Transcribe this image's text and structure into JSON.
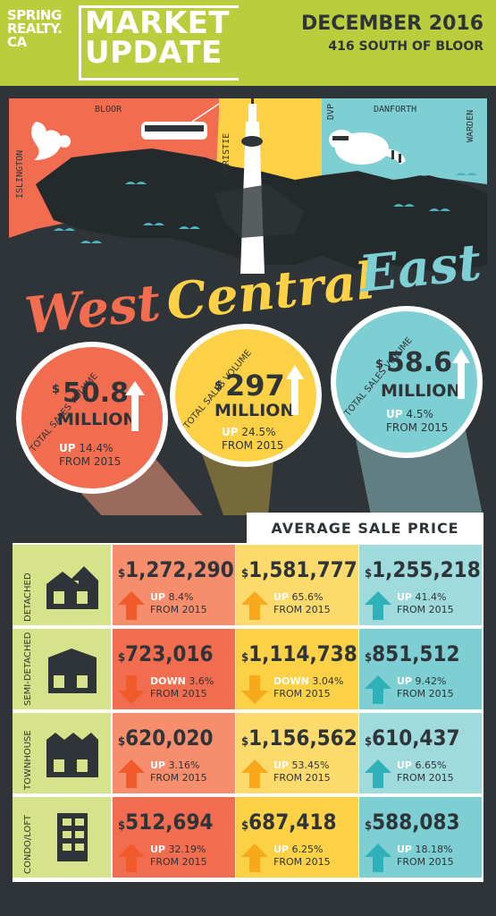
{
  "header": {
    "logo_line1": "SPRING",
    "logo_line2": "REALTY.",
    "logo_line3": "CA",
    "title_line1": "MARKET",
    "title_line2": "UPDATE",
    "date": "DECEMBER 2016",
    "address": "416 SOUTH OF BLOOR"
  },
  "streets": {
    "bloor": "BLOOR",
    "islington": "ISLINGTON",
    "christie": "CHRISTIE",
    "dvp": "DVP",
    "danforth": "DANFORTH",
    "warden": "WARDEN"
  },
  "regions": {
    "west": "West",
    "central": "Central",
    "east": "East"
  },
  "volumes": [
    {
      "label": "TOTAL SALES VOLUME",
      "dollar": "$",
      "amount": "50.8",
      "unit": "MILLION",
      "dir": "UP",
      "change": "14.4%",
      "from": "FROM 2015"
    },
    {
      "label": "TOTAL SALES VOLUME",
      "dollar": "$",
      "amount": "297",
      "unit": "MILLION",
      "dir": "UP",
      "change": "24.5%",
      "from": "FROM 2015"
    },
    {
      "label": "TOTAL SALES VOLUME",
      "dollar": "$",
      "amount": "58.6",
      "unit": "MILLION",
      "dir": "UP",
      "change": "4.5%",
      "from": "FROM 2015"
    }
  ],
  "avg_sale_price_title": "AVERAGE SALE PRICE",
  "categories": [
    "DETACHED",
    "SEMI-DETACHED",
    "TOWNHOUSE",
    "CONDO/LOFT"
  ],
  "prices": [
    [
      {
        "dollar": "$",
        "price": "1,272,290",
        "dir": "UP",
        "change": "8.4%",
        "from": "FROM 2015"
      },
      {
        "dollar": "$",
        "price": "1,581,777",
        "dir": "UP",
        "change": "65.6%",
        "from": "FROM 2015"
      },
      {
        "dollar": "$",
        "price": "1,255,218",
        "dir": "UP",
        "change": "41.4%",
        "from": "FROM 2015"
      }
    ],
    [
      {
        "dollar": "$",
        "price": "723,016",
        "dir": "DOWN",
        "change": "3.6%",
        "from": "FROM 2015"
      },
      {
        "dollar": "$",
        "price": "1,114,738",
        "dir": "DOWN",
        "change": "3.04%",
        "from": "FROM 2015"
      },
      {
        "dollar": "$",
        "price": "851,512",
        "dir": "UP",
        "change": "9.42%",
        "from": "FROM 2015"
      }
    ],
    [
      {
        "dollar": "$",
        "price": "620,020",
        "dir": "UP",
        "change": "3.16%",
        "from": "FROM 2015"
      },
      {
        "dollar": "$",
        "price": "1,156,562",
        "dir": "UP",
        "change": "53.45%",
        "from": "FROM 2015"
      },
      {
        "dollar": "$",
        "price": "610,437",
        "dir": "UP",
        "change": "6.65%",
        "from": "FROM 2015"
      }
    ],
    [
      {
        "dollar": "$",
        "price": "512,694",
        "dir": "UP",
        "change": "32.19%",
        "from": "FROM 2015"
      },
      {
        "dollar": "$",
        "price": "687,418",
        "dir": "UP",
        "change": "6.25%",
        "from": "FROM 2015"
      },
      {
        "dollar": "$",
        "price": "588,083",
        "dir": "UP",
        "change": "18.18%",
        "from": "FROM 2015"
      }
    ]
  ],
  "colors": {
    "green": "#b9cd3d",
    "orange": "#f26c4f",
    "yellow": "#fcd145",
    "teal": "#7dcfd3",
    "dark": "#2e3437",
    "arrow_orange": "#f15a2b",
    "arrow_yellow": "#f7a81b",
    "arrow_teal": "#2fb1b9"
  }
}
